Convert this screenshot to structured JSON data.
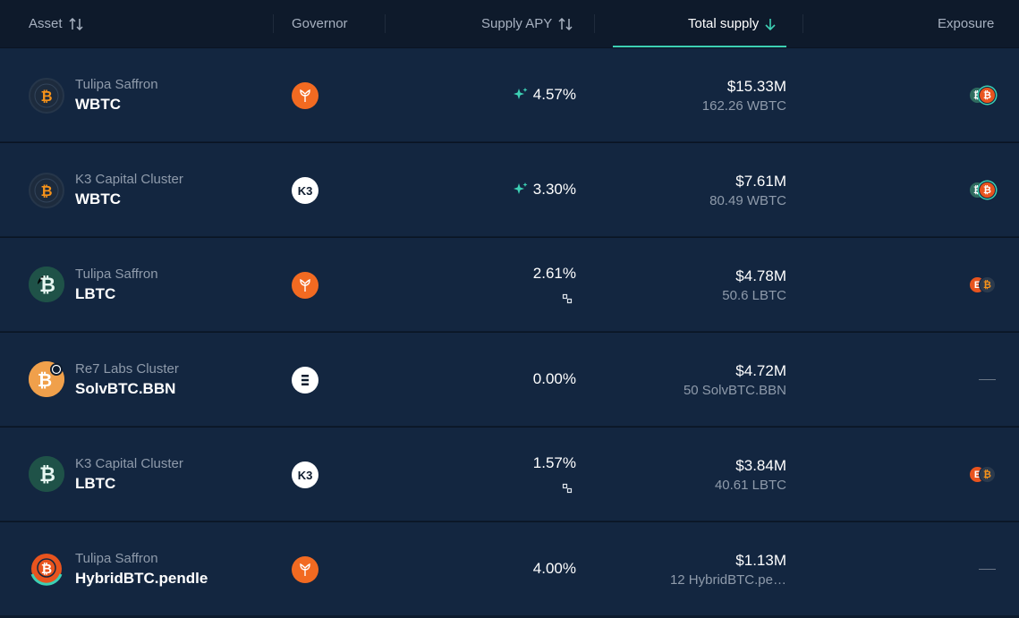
{
  "header": {
    "asset": "Asset",
    "governor": "Governor",
    "supply_apy": "Supply APY",
    "total_supply": "Total supply",
    "exposure": "Exposure"
  },
  "rows": [
    {
      "vault": "Tulipa Saffron",
      "symbol": "WBTC",
      "governor": "tulipa-icon",
      "apy": "4.57%",
      "apy_boost": true,
      "supply_usd": "$15.33M",
      "supply_amt": "162.26 WBTC",
      "exposure": [
        "lbtc",
        "wbtc-red"
      ]
    },
    {
      "vault": "K3 Capital Cluster",
      "symbol": "WBTC",
      "governor": "K3",
      "apy": "3.30%",
      "apy_boost": true,
      "supply_usd": "$7.61M",
      "supply_amt": "80.49 WBTC",
      "exposure": [
        "lbtc",
        "wbtc-red"
      ]
    },
    {
      "vault": "Tulipa Saffron",
      "symbol": "LBTC",
      "governor": "tulipa-icon",
      "apy": "2.61%",
      "apy_boost": false,
      "supply_usd": "$4.78M",
      "supply_amt": "50.6 LBTC",
      "exposure": [
        "ebtc",
        "btc-dark"
      ]
    },
    {
      "vault": "Re7 Labs Cluster",
      "symbol": "SolvBTC.BBN",
      "governor": "re7-icon",
      "apy": "0.00%",
      "apy_boost": false,
      "supply_usd": "$4.72M",
      "supply_amt": "50 SolvBTC.BBN",
      "exposure": []
    },
    {
      "vault": "K3 Capital Cluster",
      "symbol": "LBTC",
      "governor": "K3",
      "apy": "1.57%",
      "apy_boost": false,
      "supply_usd": "$3.84M",
      "supply_amt": "40.61 LBTC",
      "exposure": [
        "ebtc",
        "btc-dark"
      ]
    },
    {
      "vault": "Tulipa Saffron",
      "symbol": "HybridBTC.pendle",
      "governor": "tulipa-icon",
      "apy": "4.00%",
      "apy_boost": false,
      "supply_usd": "$1.13M",
      "supply_amt": "12 HybridBTC.pe…",
      "exposure": []
    }
  ],
  "colors": {
    "accent": "#3dd0b4",
    "tulipa": "#f26a21",
    "btc": "#f7931a",
    "lbtc": "#2f6b5f"
  }
}
